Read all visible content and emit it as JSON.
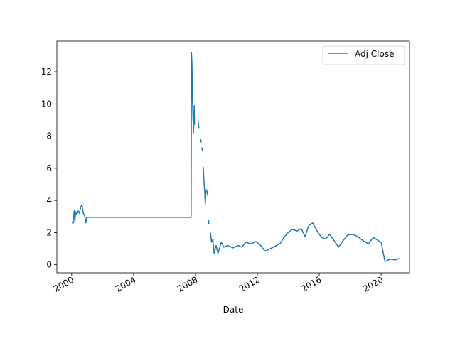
{
  "chart_data": {
    "type": "line",
    "title": "",
    "xlabel": "Date",
    "ylabel": "",
    "xlim": [
      "1999-01-16",
      "2021-11-01"
    ],
    "ylim": [
      -0.5,
      13.9
    ],
    "x_ticks": [
      "2000",
      "2004",
      "2008",
      "2012",
      "2016",
      "2020"
    ],
    "y_ticks": [
      "0",
      "2",
      "4",
      "6",
      "8",
      "10",
      "12"
    ],
    "grid": false,
    "legend": {
      "position": "top-right",
      "entries": [
        "Adj Close"
      ]
    },
    "colors": {
      "series": "#1f77b4",
      "axes": "#000000",
      "background": "#ffffff"
    },
    "series": [
      {
        "name": "Adj Close",
        "segments": [
          [
            [
              "2000-01-03",
              2.7
            ],
            [
              "2000-02-01",
              2.55
            ],
            [
              "2000-02-15",
              3.0
            ],
            [
              "2000-03-01",
              3.35
            ],
            [
              "2000-03-15",
              2.65
            ],
            [
              "2000-04-01",
              3.3
            ],
            [
              "2000-05-01",
              3.1
            ],
            [
              "2000-06-01",
              3.35
            ],
            [
              "2000-07-01",
              3.2
            ],
            [
              "2000-08-01",
              3.6
            ],
            [
              "2000-09-01",
              3.7
            ],
            [
              "2000-09-15",
              3.45
            ],
            [
              "2000-10-01",
              3.2
            ],
            [
              "2000-11-01",
              3.05
            ],
            [
              "2000-12-01",
              2.6
            ],
            [
              "2000-12-20",
              2.95
            ],
            [
              "2001-01-05",
              2.95
            ],
            [
              "2007-09-20",
              2.95
            ],
            [
              "2007-09-28",
              13.2
            ],
            [
              "2007-10-10",
              12.5
            ],
            [
              "2007-10-20",
              10.5
            ],
            [
              "2007-11-01",
              9.4
            ],
            [
              "2007-11-15",
              8.2
            ],
            [
              "2007-12-01",
              9.9
            ],
            [
              "2007-12-10",
              8.7
            ]
          ],
          [
            [
              "2008-03-01",
              9.0
            ],
            [
              "2008-03-20",
              8.5
            ]
          ],
          [
            [
              "2008-05-01",
              7.8
            ],
            [
              "2008-05-15",
              7.6
            ]
          ],
          [
            [
              "2008-06-01",
              7.3
            ],
            [
              "2008-06-10",
              7.1
            ]
          ],
          [
            [
              "2008-07-01",
              6.1
            ],
            [
              "2008-07-20",
              5.2
            ],
            [
              "2008-08-05",
              4.6
            ],
            [
              "2008-08-20",
              3.8
            ],
            [
              "2008-09-01",
              4.5
            ],
            [
              "2008-09-15",
              4.7
            ]
          ],
          [
            [
              "2008-10-01",
              4.6
            ],
            [
              "2008-10-15",
              4.3
            ]
          ],
          [
            [
              "2008-11-01",
              2.8
            ],
            [
              "2008-11-15",
              2.5
            ]
          ],
          [
            [
              "2008-12-20",
              2.0
            ],
            [
              "2009-01-15",
              1.4
            ],
            [
              "2009-02-15",
              1.6
            ],
            [
              "2009-03-15",
              0.7
            ],
            [
              "2009-05-01",
              1.2
            ],
            [
              "2009-06-15",
              0.7
            ],
            [
              "2009-09-01",
              1.4
            ],
            [
              "2009-11-01",
              1.1
            ],
            [
              "2010-02-01",
              1.2
            ],
            [
              "2010-06-01",
              1.05
            ],
            [
              "2010-10-01",
              1.2
            ],
            [
              "2011-01-01",
              1.1
            ],
            [
              "2011-04-01",
              1.4
            ],
            [
              "2011-08-01",
              1.3
            ],
            [
              "2011-12-01",
              1.45
            ],
            [
              "2012-03-01",
              1.25
            ],
            [
              "2012-07-01",
              0.85
            ],
            [
              "2012-11-01",
              1.0
            ],
            [
              "2013-03-01",
              1.15
            ],
            [
              "2013-07-01",
              1.35
            ],
            [
              "2013-10-01",
              1.75
            ],
            [
              "2014-01-01",
              2.0
            ],
            [
              "2014-04-01",
              2.2
            ],
            [
              "2014-08-01",
              2.1
            ],
            [
              "2014-11-01",
              2.25
            ],
            [
              "2015-02-01",
              1.75
            ],
            [
              "2015-05-01",
              2.45
            ],
            [
              "2015-08-01",
              2.6
            ],
            [
              "2015-10-01",
              2.3
            ],
            [
              "2015-12-01",
              2.0
            ],
            [
              "2016-03-01",
              1.7
            ],
            [
              "2016-06-01",
              1.6
            ],
            [
              "2016-09-01",
              1.9
            ],
            [
              "2017-01-01",
              1.45
            ],
            [
              "2017-04-01",
              1.1
            ],
            [
              "2017-08-01",
              1.55
            ],
            [
              "2017-11-01",
              1.85
            ],
            [
              "2018-03-01",
              1.9
            ],
            [
              "2018-07-01",
              1.75
            ],
            [
              "2018-11-01",
              1.5
            ],
            [
              "2019-03-01",
              1.3
            ],
            [
              "2019-07-01",
              1.7
            ],
            [
              "2019-10-01",
              1.55
            ],
            [
              "2020-01-01",
              1.4
            ],
            [
              "2020-03-01",
              0.6
            ],
            [
              "2020-04-01",
              0.2
            ],
            [
              "2020-08-01",
              0.35
            ],
            [
              "2020-12-01",
              0.3
            ],
            [
              "2021-03-01",
              0.4
            ]
          ]
        ]
      }
    ]
  }
}
